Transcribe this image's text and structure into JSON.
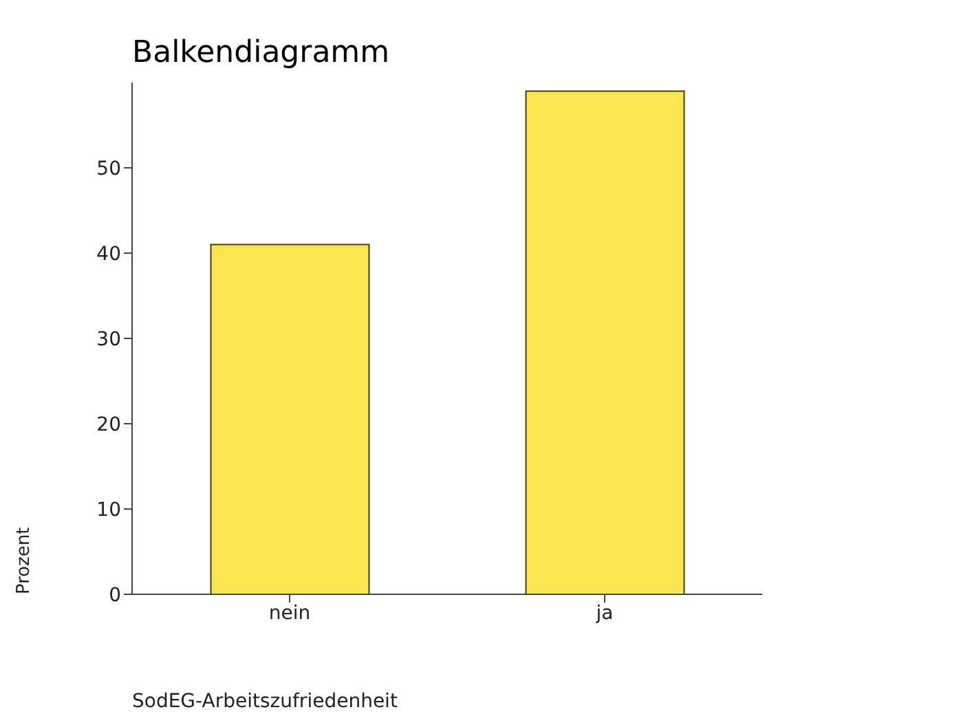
{
  "chart_data": {
    "type": "bar",
    "title": "Balkendiagramm",
    "xlabel": "SodEG-Arbeitszufriedenheit",
    "ylabel": "Prozent",
    "categories": [
      "nein",
      "ja"
    ],
    "values": [
      41,
      59
    ],
    "color": "#fbe652",
    "ylim": [
      0,
      60
    ],
    "yticks": [
      0,
      10,
      20,
      30,
      40,
      50
    ],
    "grid": false
  }
}
